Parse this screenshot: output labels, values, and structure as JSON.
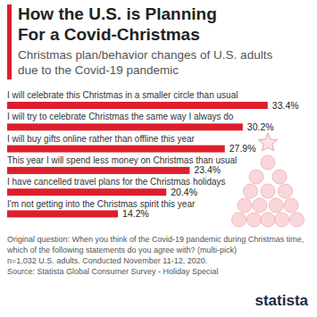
{
  "chart_data": {
    "type": "bar",
    "title": "How the U.S. is Planning For a Covid-Christmas",
    "subtitle": "Christmas plan/behavior changes of U.S. adults due to the Covid-19 pandemic",
    "categories": [
      "I will celebrate this Christmas in a smaller circle than usual",
      "I will try to celebrate Christmas the same way I always do",
      "I will buy gifts online rather than offline this year",
      "This year I will spend less money on Christmas than usual",
      "I have cancelled travel plans for the Christmas holidays",
      "I'm not getting into the Christmas spirit this year"
    ],
    "values": [
      33.4,
      30.2,
      27.9,
      23.4,
      20.4,
      14.2
    ],
    "value_labels": [
      "33.4%",
      "30.2%",
      "27.9%",
      "23.4%",
      "20.4%",
      "14.2%"
    ],
    "color": "#dd1f2d",
    "orientation": "horizontal",
    "data_labels": true,
    "tick_labels": false,
    "grid": false,
    "ylim": [
      0,
      38
    ],
    "notes": [
      "Original question: When you think of the Covid-19 pandemic during Christmas time, which of the following statements do you agree with? (multi-pick)",
      "n=1,032 U.S. adults. Conducted November 11-12, 2020.",
      "Source: Statista Global Consumer Survey - Holiday Special"
    ],
    "brand": "statista"
  }
}
